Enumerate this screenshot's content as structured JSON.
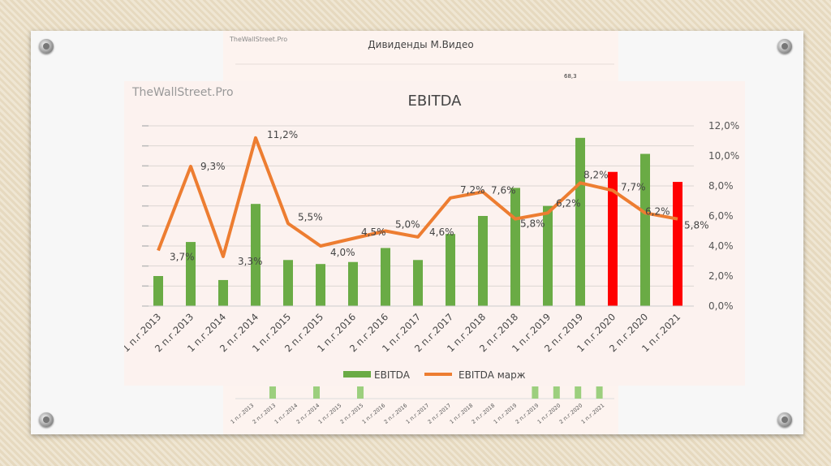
{
  "background_chart": {
    "brand": "TheWallStreet.Pro",
    "title": "Дивиденды М.Видео",
    "value_label": "68,3",
    "categories": [
      "1 п.г.2013",
      "2 п.г.2013",
      "1 п.г.2014",
      "2 п.г.2014",
      "1 п.г.2015",
      "2 п.г.2015",
      "1 п.г.2016",
      "2 п.г.2016",
      "1 п.г.2017",
      "2 п.г.2017",
      "1 п.г.2018",
      "2 п.г.2018",
      "1 п.г.2019",
      "2 п.г.2019",
      "1 п.г.2020",
      "2 п.г.2020",
      "1 п.г.2021"
    ]
  },
  "chart_data": {
    "type": "bar+line",
    "brand": "TheWallStreet.Pro",
    "title": "EBITDA",
    "categories": [
      "1 п.г.2013",
      "2 п.г.2013",
      "1 п.г.2014",
      "2 п.г.2014",
      "1 п.г.2015",
      "2 п.г.2015",
      "1 п.г.2016",
      "2 п.г.2016",
      "1 п.г.2017",
      "2 п.г.2017",
      "1 п.г.2018",
      "2 п.г.2018",
      "1 п.г.2019",
      "2 п.г.2019",
      "1 п.г.2020",
      "2 п.г.2020",
      "1 п.г.2021"
    ],
    "series": [
      {
        "name": "EBITDA",
        "type": "bar",
        "axis": "left (unlabeled)",
        "color": "#6aab45",
        "highlight_color": "#ff0000",
        "highlight_indices": [
          14,
          16
        ],
        "values": [
          1.5,
          3.2,
          1.3,
          5.1,
          2.3,
          2.1,
          2.2,
          2.9,
          2.3,
          3.6,
          4.5,
          5.9,
          5.0,
          8.4,
          6.7,
          7.6,
          6.2
        ]
      },
      {
        "name": "EBITDA марж",
        "type": "line",
        "axis": "right",
        "color": "#ed7d31",
        "values": [
          3.7,
          9.3,
          3.3,
          11.2,
          5.5,
          4.0,
          4.5,
          5.0,
          4.6,
          7.2,
          7.6,
          5.8,
          6.2,
          8.2,
          7.7,
          6.2,
          5.8
        ],
        "labels": [
          "3,7%",
          "9,3%",
          "3,3%",
          "11,2%",
          "5,5%",
          "4,0%",
          "4,5%",
          "5,0%",
          "4,6%",
          "7,2%",
          "7,6%",
          "5,8%",
          "6,2%",
          "8,2%",
          "7,7%",
          "6,2%",
          "5,8%"
        ]
      }
    ],
    "left_ylim": [
      0,
      9
    ],
    "right_ylim": [
      0,
      12
    ],
    "right_ticks": [
      "0,0%",
      "2,0%",
      "4,0%",
      "6,0%",
      "8,0%",
      "10,0%",
      "12,0%"
    ],
    "legend": "bottom",
    "grid": true
  }
}
